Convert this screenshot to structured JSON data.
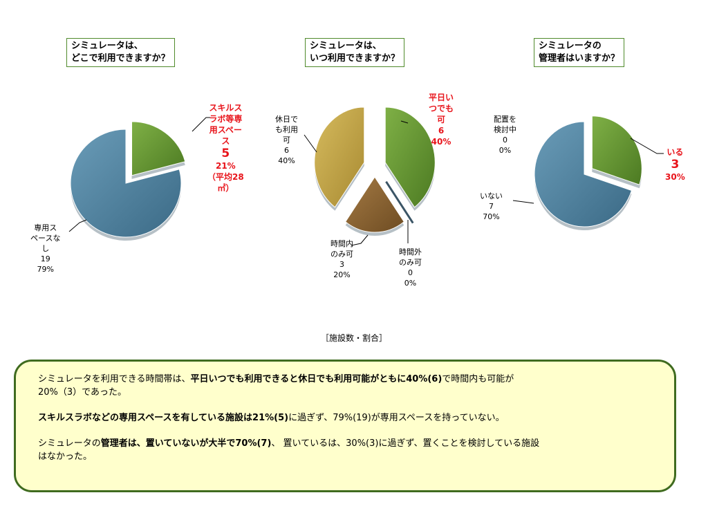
{
  "questions": {
    "q1_line1": "シミュレータは、",
    "q1_line2": "どこで利用できますか？",
    "q2_line1": "シミュレータは、",
    "q2_line2": "いつ利用できますか？",
    "q3_line1": "シミュレータの",
    "q3_line2": "管理者はいますか？"
  },
  "labels": {
    "c1_skills": [
      "スキルス",
      "ラボ等専",
      "用スペー",
      "ス"
    ],
    "c1_skills_n": "5",
    "c1_skills_pct": "21%",
    "c1_skills_note": [
      "（平均28",
      "㎡）"
    ],
    "c1_none": [
      "専用ス",
      "ペースな",
      "し",
      "19",
      "79%"
    ],
    "c2_weekday": [
      "平日い",
      "つでも",
      "可",
      "6",
      "40%"
    ],
    "c2_holiday": [
      "休日で",
      "も利用",
      "可",
      "6",
      "40%"
    ],
    "c2_inhours": [
      "時間内",
      "のみ可",
      "3",
      "20%"
    ],
    "c2_outhours": [
      "時間外",
      "のみ可",
      "0",
      "0%"
    ],
    "c3_consider": [
      "配置を",
      "検討中",
      "0",
      "0%"
    ],
    "c3_yes": "いる",
    "c3_yes_n": "3",
    "c3_yes_pct": "30%",
    "c3_no": [
      "いない",
      "7",
      "70%"
    ]
  },
  "caption": "［施設数・割合］",
  "summary": {
    "p1_a": "シミュレータを利用できる時間帯は、",
    "p1_b": "平日いつでも利用できると休日でも利用可能がともに40%(6)",
    "p1_c": "で時間内も可能が",
    "p1_d": "20%（3）であった。",
    "p2_a": "スキルスラボなどの専用スペースを有している施設は21%(5)",
    "p2_b": "に過ぎず、79%(19)が専用スペースを持っていない。",
    "p3_a": "シミュレータの",
    "p3_b": "管理者は、置いていないが大半で70%(7)",
    "p3_c": "、 置いているは、30%(3)に過ぎず、置くことを検討している施設",
    "p3_d": "はなかった。"
  },
  "colors": {
    "green": "#6a9a35",
    "blue": "#5485a0",
    "gold": "#c4a64a",
    "brown": "#8a6433",
    "red": "#e8141b"
  },
  "chart_data": [
    {
      "type": "pie",
      "title": "シミュレータは、どこで利用できますか？",
      "categories": [
        "スキルスラボ等専用スペース",
        "専用スペースなし"
      ],
      "values": [
        5,
        19
      ],
      "percent": [
        21,
        79
      ]
    },
    {
      "type": "pie",
      "title": "シミュレータは、いつ利用できますか？",
      "categories": [
        "平日いつでも可",
        "時間外のみ可",
        "時間内のみ可",
        "休日でも利用可"
      ],
      "values": [
        6,
        0,
        3,
        6
      ],
      "percent": [
        40,
        0,
        20,
        40
      ]
    },
    {
      "type": "pie",
      "title": "シミュレータの管理者はいますか？",
      "categories": [
        "いる",
        "いない",
        "配置を検討中"
      ],
      "values": [
        3,
        7,
        0
      ],
      "percent": [
        30,
        70,
        0
      ]
    }
  ]
}
